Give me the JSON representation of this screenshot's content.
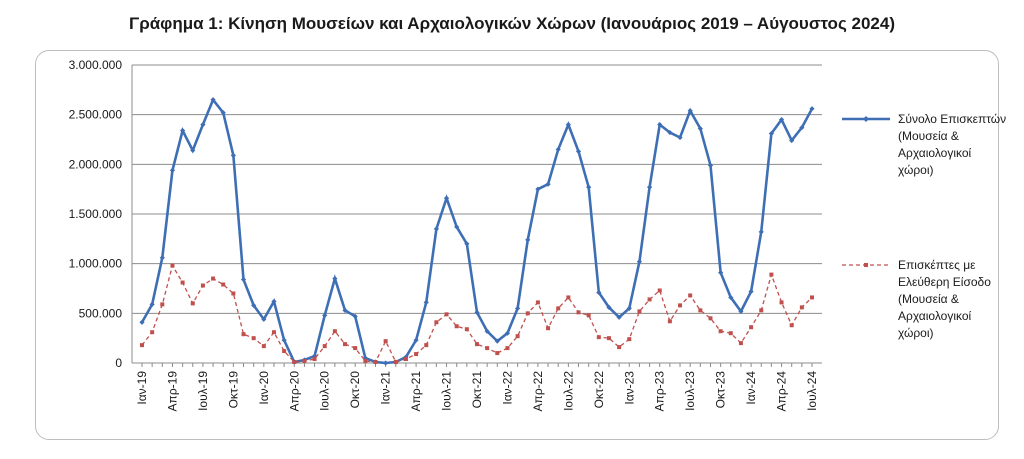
{
  "title": "Γράφημα 1: Κίνηση Μουσείων και Αρχαιολογικών Χώρων (Ιανουάριος 2019 – Αύγουστος 2024)",
  "chart_data": {
    "type": "line",
    "ylim": [
      0,
      3000000
    ],
    "yticks": [
      "0",
      "500.000",
      "1.000.000",
      "1.500.000",
      "2.000.000",
      "2.500.000",
      "3.000.000"
    ],
    "ytick_values": [
      0,
      500000,
      1000000,
      1500000,
      2000000,
      2500000,
      3000000
    ],
    "x_tick_labels": [
      "Ιαν-19",
      "Απρ-19",
      "Ιουλ-19",
      "Οκτ-19",
      "Ιαν-20",
      "Απρ-20",
      "Ιουλ-20",
      "Οκτ-20",
      "Ιαν-21",
      "Απρ-21",
      "Ιουλ-21",
      "Οκτ-21",
      "Ιαν-22",
      "Απρ-22",
      "Ιουλ-22",
      "Οκτ-22",
      "Ιαν-23",
      "Απρ-23",
      "Ιουλ-23",
      "Οκτ-23",
      "Ιαν-24",
      "Απρ-24",
      "Ιουλ-24"
    ],
    "x_tick_months": [
      0,
      3,
      6,
      9,
      12,
      15,
      18,
      21,
      24,
      27,
      30,
      33,
      36,
      39,
      42,
      45,
      48,
      51,
      54,
      57,
      60,
      63,
      66
    ],
    "grid": true,
    "legend_position": "right",
    "series": [
      {
        "name": "Σύνολο Επισκεπτών (Μουσεία & Αρχαιολογικοί χώροι)",
        "color": "#3e6fb5",
        "style": "solid",
        "marker": "diamond",
        "values": [
          410000,
          590000,
          1060000,
          1940000,
          2340000,
          2140000,
          2400000,
          2650000,
          2520000,
          2090000,
          840000,
          580000,
          440000,
          620000,
          230000,
          10000,
          30000,
          70000,
          480000,
          850000,
          530000,
          470000,
          50000,
          10000,
          0,
          10000,
          60000,
          230000,
          610000,
          1350000,
          1660000,
          1370000,
          1200000,
          510000,
          320000,
          220000,
          300000,
          550000,
          1240000,
          1750000,
          1800000,
          2150000,
          2400000,
          2130000,
          1770000,
          710000,
          560000,
          460000,
          550000,
          1020000,
          1770000,
          2400000,
          2320000,
          2270000,
          2540000,
          2360000,
          1990000,
          910000,
          660000,
          520000,
          720000,
          1320000,
          2310000,
          2450000,
          2240000,
          2370000,
          2560000
        ]
      },
      {
        "name": "Επισκέπτες με Ελεύθερη Είσοδο (Μουσεία & Αρχαιολογικοί χώροι)",
        "color": "#c0504d",
        "style": "dashed",
        "marker": "square",
        "values": [
          180000,
          310000,
          590000,
          980000,
          810000,
          600000,
          780000,
          850000,
          790000,
          700000,
          290000,
          250000,
          170000,
          310000,
          120000,
          10000,
          20000,
          40000,
          170000,
          320000,
          190000,
          150000,
          20000,
          10000,
          220000,
          10000,
          40000,
          90000,
          180000,
          410000,
          490000,
          370000,
          340000,
          190000,
          150000,
          100000,
          150000,
          270000,
          500000,
          610000,
          350000,
          550000,
          660000,
          510000,
          480000,
          260000,
          250000,
          160000,
          240000,
          520000,
          640000,
          730000,
          420000,
          580000,
          680000,
          530000,
          450000,
          320000,
          300000,
          200000,
          360000,
          530000,
          890000,
          610000,
          380000,
          560000,
          660000
        ]
      }
    ]
  }
}
